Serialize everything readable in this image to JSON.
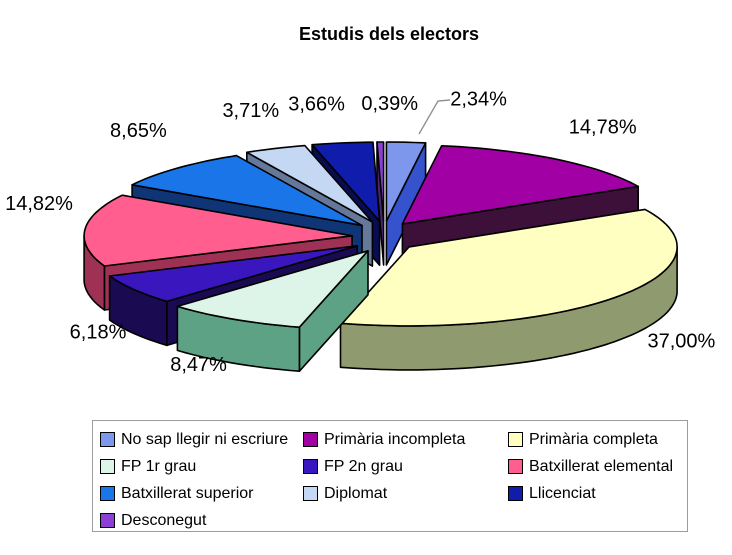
{
  "window": {
    "background": "#FFFFFF"
  },
  "chart_data": {
    "type": "pie",
    "style": "3d-exploded",
    "title": "Estudis dels electors",
    "legend_position": "bottom",
    "direction": "clockwise",
    "start_angle_deg": 0,
    "value_unit": "%",
    "label_decimal_separator": ",",
    "outline_color": "#000000",
    "leader_line_color": "#909090",
    "slices": [
      {
        "id": "no-sap-llegir-ni-escriure",
        "name": "No sap llegir ni escriure",
        "value": 2.34,
        "label": "2,34%",
        "color": "#7D97EC",
        "side_color": "#3553CC"
      },
      {
        "id": "primaria-incompleta",
        "name": "Primària incompleta",
        "value": 14.78,
        "label": "14,78%",
        "color": "#A100A5",
        "side_color": "#3C1038"
      },
      {
        "id": "primaria-completa",
        "name": "Primària completa",
        "value": 37.0,
        "label": "37,00%",
        "color": "#FFFFC2",
        "side_color": "#8F9B6E"
      },
      {
        "id": "fp-1r-grau",
        "name": "FP 1r grau",
        "value": 8.47,
        "label": "8,47%",
        "color": "#DCF5E8",
        "side_color": "#5EA286"
      },
      {
        "id": "fp-2n-grau",
        "name": "FP 2n grau",
        "value": 6.18,
        "label": "6,18%",
        "color": "#3916BE",
        "side_color": "#190A52"
      },
      {
        "id": "batxillerat-elemental",
        "name": "Batxillerat elemental",
        "value": 14.82,
        "label": "14,82%",
        "color": "#FF5E8F",
        "side_color": "#9E3154"
      },
      {
        "id": "batxillerat-superior",
        "name": "Batxillerat superior",
        "value": 8.65,
        "label": "8,65%",
        "color": "#1A75E8",
        "side_color": "#0F3577"
      },
      {
        "id": "diplomat",
        "name": "Diplomat",
        "value": 3.71,
        "label": "3,71%",
        "color": "#C4D8F4",
        "side_color": "#66789A"
      },
      {
        "id": "llicenciat",
        "name": "Llicenciat",
        "value": 3.66,
        "label": "3,66%",
        "color": "#101CAC",
        "side_color": "#070D50"
      },
      {
        "id": "desconegut",
        "name": "Desconegut",
        "value": 0.39,
        "label": "0,39%",
        "color": "#8B3FD4",
        "side_color": "#4E2478"
      }
    ]
  }
}
